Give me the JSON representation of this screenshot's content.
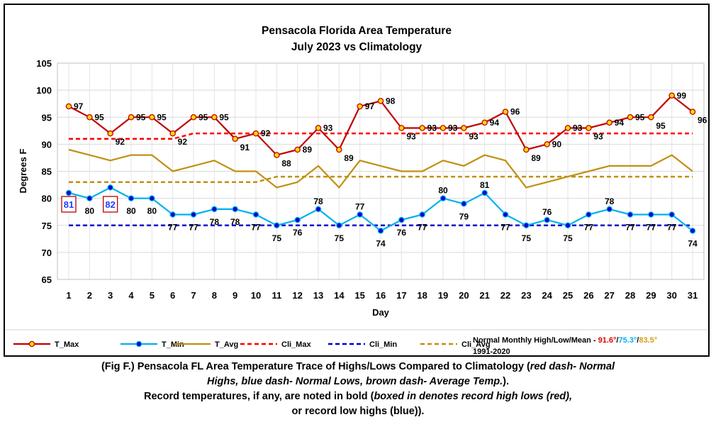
{
  "chart_data": {
    "type": "line",
    "title_lines": [
      "Pensacola Florida Area Temperature",
      "July 2023 vs Climatology"
    ],
    "xlabel": "Day",
    "ylabel": "Degrees F",
    "ylim": [
      65,
      105
    ],
    "yticks": [
      65,
      70,
      75,
      80,
      85,
      90,
      95,
      100,
      105
    ],
    "grid": true,
    "x": [
      1,
      2,
      3,
      4,
      5,
      6,
      7,
      8,
      9,
      10,
      11,
      12,
      13,
      14,
      15,
      16,
      17,
      18,
      19,
      20,
      21,
      22,
      23,
      24,
      25,
      26,
      27,
      28,
      29,
      30,
      31
    ],
    "x_tick_labels": [
      "1",
      "2",
      "3",
      "4",
      "5",
      "6",
      "7",
      "8",
      "9",
      "10",
      "11",
      "12",
      "13",
      "14",
      "15",
      "16",
      "17",
      "18",
      "19",
      "20",
      "21",
      "22",
      "23",
      "24",
      "25",
      "26",
      "27",
      "28",
      "29",
      "30",
      "31"
    ],
    "series": [
      {
        "name": "T_Max",
        "color": "#c00000",
        "marker_fill": "#ffd700",
        "style": "solid",
        "values": [
          97,
          95,
          92,
          95,
          95,
          92,
          95,
          95,
          91,
          92,
          88,
          89,
          93,
          89,
          97,
          98,
          93,
          93,
          93,
          93,
          94,
          96,
          89,
          90,
          93,
          93,
          94,
          95,
          95,
          99,
          96
        ],
        "labels": [
          "97",
          "95",
          "92",
          "95",
          "95",
          "92",
          "95",
          "95",
          "91",
          "92",
          "88",
          "89",
          "93",
          "89",
          "97",
          "98",
          "93",
          "93",
          "93",
          "93",
          "94",
          "96",
          "89",
          "90",
          "93",
          "93",
          "94",
          "95",
          "95",
          "99",
          "96"
        ]
      },
      {
        "name": "T_Min",
        "color": "#00b0f0",
        "marker_fill": "#0000cc",
        "style": "solid",
        "values": [
          81,
          80,
          82,
          80,
          80,
          77,
          77,
          78,
          78,
          77,
          75,
          76,
          78,
          75,
          77,
          74,
          76,
          77,
          80,
          79,
          81,
          77,
          75,
          76,
          75,
          77,
          78,
          77,
          77,
          77,
          74
        ],
        "labels": [
          "81",
          "80",
          "82",
          "80",
          "80",
          "77",
          "77",
          "78",
          "78",
          "77",
          "75",
          "76",
          "78",
          "75",
          "77",
          "74",
          "76",
          "77",
          "80",
          "79",
          "81",
          "77",
          "75",
          "76",
          "75",
          "77",
          "78",
          "77",
          "77",
          "77",
          "74"
        ]
      },
      {
        "name": "T_Avg",
        "color": "#c09010",
        "style": "solid",
        "values": [
          89,
          88,
          87,
          88,
          88,
          85,
          86,
          87,
          85,
          85,
          82,
          83,
          86,
          82,
          87,
          86,
          85,
          85,
          87,
          86,
          88,
          87,
          82,
          83,
          84,
          85,
          86,
          86,
          86,
          88,
          85
        ]
      },
      {
        "name": "Cli_Max",
        "color": "#ff0000",
        "style": "dash",
        "values": [
          91,
          91,
          91,
          91,
          91,
          91,
          92,
          92,
          92,
          92,
          92,
          92,
          92,
          92,
          92,
          92,
          92,
          92,
          92,
          92,
          92,
          92,
          92,
          92,
          92,
          92,
          92,
          92,
          92,
          92,
          92
        ]
      },
      {
        "name": "Cli_Min",
        "color": "#0000cc",
        "style": "dash",
        "values": [
          75,
          75,
          75,
          75,
          75,
          75,
          75,
          75,
          75,
          75,
          75,
          75,
          75,
          75,
          75,
          75,
          75,
          75,
          75,
          75,
          75,
          75,
          75,
          75,
          75,
          75,
          75,
          75,
          75,
          75,
          75
        ]
      },
      {
        "name": "Cli_Avg",
        "color": "#c09010",
        "style": "dash",
        "values": [
          83,
          83,
          83,
          83,
          83,
          83,
          83,
          83,
          83,
          83,
          84,
          84,
          84,
          84,
          84,
          84,
          84,
          84,
          84,
          84,
          84,
          84,
          84,
          84,
          84,
          84,
          84,
          84,
          84,
          84,
          84
        ]
      }
    ],
    "record_boxes": [
      {
        "day": 1,
        "value": "81",
        "box_color": "#c00000",
        "text_color": "#1f3fff"
      },
      {
        "day": 3,
        "value": "82",
        "box_color": "#c00000",
        "text_color": "#1f3fff"
      }
    ],
    "legend": {
      "placement": "bottom",
      "entries": [
        "T_Max",
        "T_Min",
        "T_Avg",
        "Cli_Max",
        "Cli_Min",
        "Cli_Avg"
      ]
    },
    "normals_note": {
      "prefix": "Normal Monthly High/Low/Mean - ",
      "high": "91.6°",
      "low": "75.3°",
      "mean": "83.5°",
      "sep": "/",
      "period": "1991-2020",
      "colors": {
        "high": "#e00000",
        "low": "#00b0f0",
        "mean": "#d4a017"
      }
    }
  },
  "caption": {
    "line1_a": "(Fig F.) Pensacola FL Area Temperature Trace of Highs/Lows Compared to Climatology (",
    "line1_b": "red dash- Normal",
    "line2_a": "Highs, blue dash- Normal Lows, brown dash- Average Temp.",
    "line2_b": ").",
    "line3_a": "Record temperatures, if any, are noted in bold (",
    "line3_b": "boxed in denotes record high lows (red),",
    "line4": "or record low highs (blue))."
  }
}
